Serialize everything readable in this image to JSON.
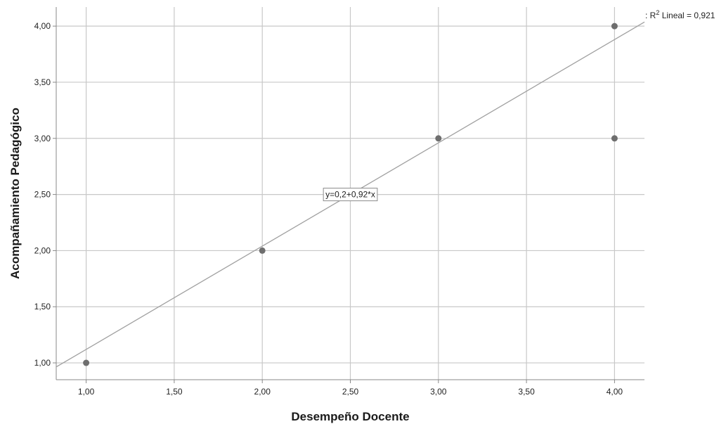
{
  "chart_data": {
    "type": "scatter",
    "title": "",
    "xlabel": "Desempeño Docente",
    "ylabel": "Acompañamiento Pedagógico",
    "xlim": [
      0.83,
      4.17
    ],
    "ylim": [
      0.85,
      4.17
    ],
    "x_ticks": [
      1.0,
      1.5,
      2.0,
      2.5,
      3.0,
      3.5,
      4.0
    ],
    "y_ticks": [
      1.0,
      1.5,
      2.0,
      2.5,
      3.0,
      3.5,
      4.0
    ],
    "x_tick_labels": [
      "1,00",
      "1,50",
      "2,00",
      "2,50",
      "3,00",
      "3,50",
      "4,00"
    ],
    "y_tick_labels": [
      "1,00",
      "1,50",
      "2,00",
      "2,50",
      "3,00",
      "3,50",
      "4,00"
    ],
    "grid": true,
    "points": [
      {
        "x": 1,
        "y": 1
      },
      {
        "x": 2,
        "y": 2
      },
      {
        "x": 3,
        "y": 3
      },
      {
        "x": 4,
        "y": 4
      },
      {
        "x": 4,
        "y": 3
      }
    ],
    "fit_line": {
      "intercept": 0.2,
      "slope": 0.92,
      "equation_label": "y=0,2+0,92*x",
      "r2_prefix": ": R",
      "r2_sup": "2",
      "r2_suffix": " Lineal = 0,921"
    },
    "colors": {
      "point": "#6e6e6e",
      "grid": "#c8c8c8",
      "fit_line": "#a0a0a0",
      "axis": "#888888"
    }
  }
}
